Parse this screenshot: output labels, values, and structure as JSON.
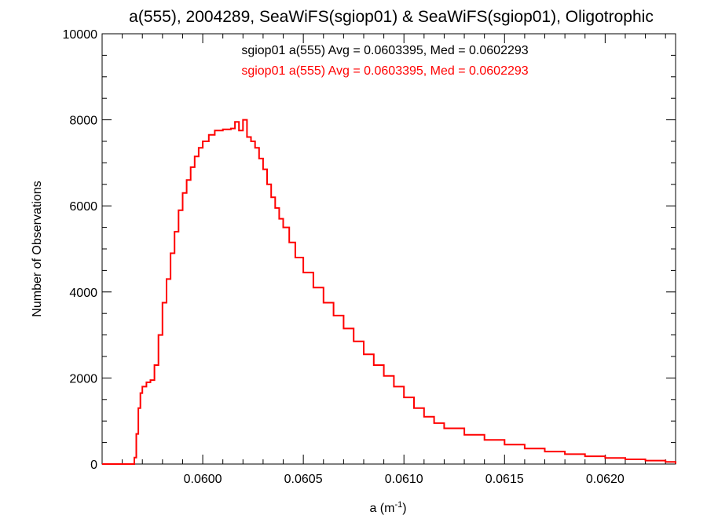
{
  "chart_data": {
    "type": "bar",
    "style": "step-histogram",
    "title": "a(555), 2004289, SeaWiFS(sgiop01) & SeaWiFS(sgiop01), Oligotrophic",
    "xlabel_base": "a (m",
    "xlabel_sup": "-1",
    "xlabel_close": ")",
    "ylabel": "Number of Observations",
    "xlim": [
      0.0595,
      0.06235
    ],
    "ylim": [
      0,
      10000
    ],
    "x_ticks": [
      0.06,
      0.0605,
      0.061,
      0.0615,
      0.062
    ],
    "x_tick_labels": [
      "0.0600",
      "0.0605",
      "0.0610",
      "0.0615",
      "0.0620"
    ],
    "y_ticks": [
      0,
      2000,
      4000,
      6000,
      8000,
      10000
    ],
    "y_tick_labels": [
      "0",
      "2000",
      "4000",
      "6000",
      "8000",
      "10000"
    ],
    "grid": false,
    "legend_entries": [
      {
        "text": "sgiop01 a(555) Avg = 0.0603395, Med = 0.0602293",
        "color": "#000000"
      },
      {
        "text": "sgiop01 a(555) Avg = 0.0603395, Med = 0.0602293",
        "color": "#ff0000"
      }
    ],
    "series": [
      {
        "color": "#ff0000",
        "points": [
          [
            0.0595,
            0
          ],
          [
            0.05965,
            0
          ],
          [
            0.05966,
            150
          ],
          [
            0.05967,
            700
          ],
          [
            0.05968,
            1300
          ],
          [
            0.05969,
            1650
          ],
          [
            0.0597,
            1800
          ],
          [
            0.05972,
            1900
          ],
          [
            0.05974,
            1950
          ],
          [
            0.05976,
            2300
          ],
          [
            0.05978,
            3000
          ],
          [
            0.0598,
            3750
          ],
          [
            0.05982,
            4300
          ],
          [
            0.05984,
            4900
          ],
          [
            0.05986,
            5400
          ],
          [
            0.05988,
            5900
          ],
          [
            0.0599,
            6300
          ],
          [
            0.05992,
            6600
          ],
          [
            0.05994,
            6900
          ],
          [
            0.05996,
            7150
          ],
          [
            0.05998,
            7350
          ],
          [
            0.06,
            7500
          ],
          [
            0.06003,
            7650
          ],
          [
            0.06006,
            7750
          ],
          [
            0.0601,
            7780
          ],
          [
            0.06014,
            7800
          ],
          [
            0.06016,
            7950
          ],
          [
            0.06018,
            7750
          ],
          [
            0.0602,
            8000
          ],
          [
            0.06022,
            7600
          ],
          [
            0.06024,
            7500
          ],
          [
            0.06026,
            7350
          ],
          [
            0.06028,
            7100
          ],
          [
            0.0603,
            6850
          ],
          [
            0.06032,
            6500
          ],
          [
            0.06034,
            6200
          ],
          [
            0.06036,
            5950
          ],
          [
            0.06038,
            5700
          ],
          [
            0.0604,
            5500
          ],
          [
            0.06043,
            5150
          ],
          [
            0.06046,
            4800
          ],
          [
            0.0605,
            4450
          ],
          [
            0.06055,
            4100
          ],
          [
            0.0606,
            3750
          ],
          [
            0.06065,
            3450
          ],
          [
            0.0607,
            3150
          ],
          [
            0.06075,
            2850
          ],
          [
            0.0608,
            2550
          ],
          [
            0.06085,
            2300
          ],
          [
            0.0609,
            2050
          ],
          [
            0.06095,
            1800
          ],
          [
            0.061,
            1550
          ],
          [
            0.06105,
            1300
          ],
          [
            0.0611,
            1100
          ],
          [
            0.06115,
            950
          ],
          [
            0.0612,
            830
          ],
          [
            0.0613,
            680
          ],
          [
            0.0614,
            560
          ],
          [
            0.0615,
            450
          ],
          [
            0.0616,
            360
          ],
          [
            0.0617,
            290
          ],
          [
            0.0618,
            230
          ],
          [
            0.0619,
            180
          ],
          [
            0.062,
            140
          ],
          [
            0.0621,
            110
          ],
          [
            0.0622,
            80
          ],
          [
            0.0623,
            50
          ],
          [
            0.06235,
            10
          ]
        ]
      }
    ]
  }
}
